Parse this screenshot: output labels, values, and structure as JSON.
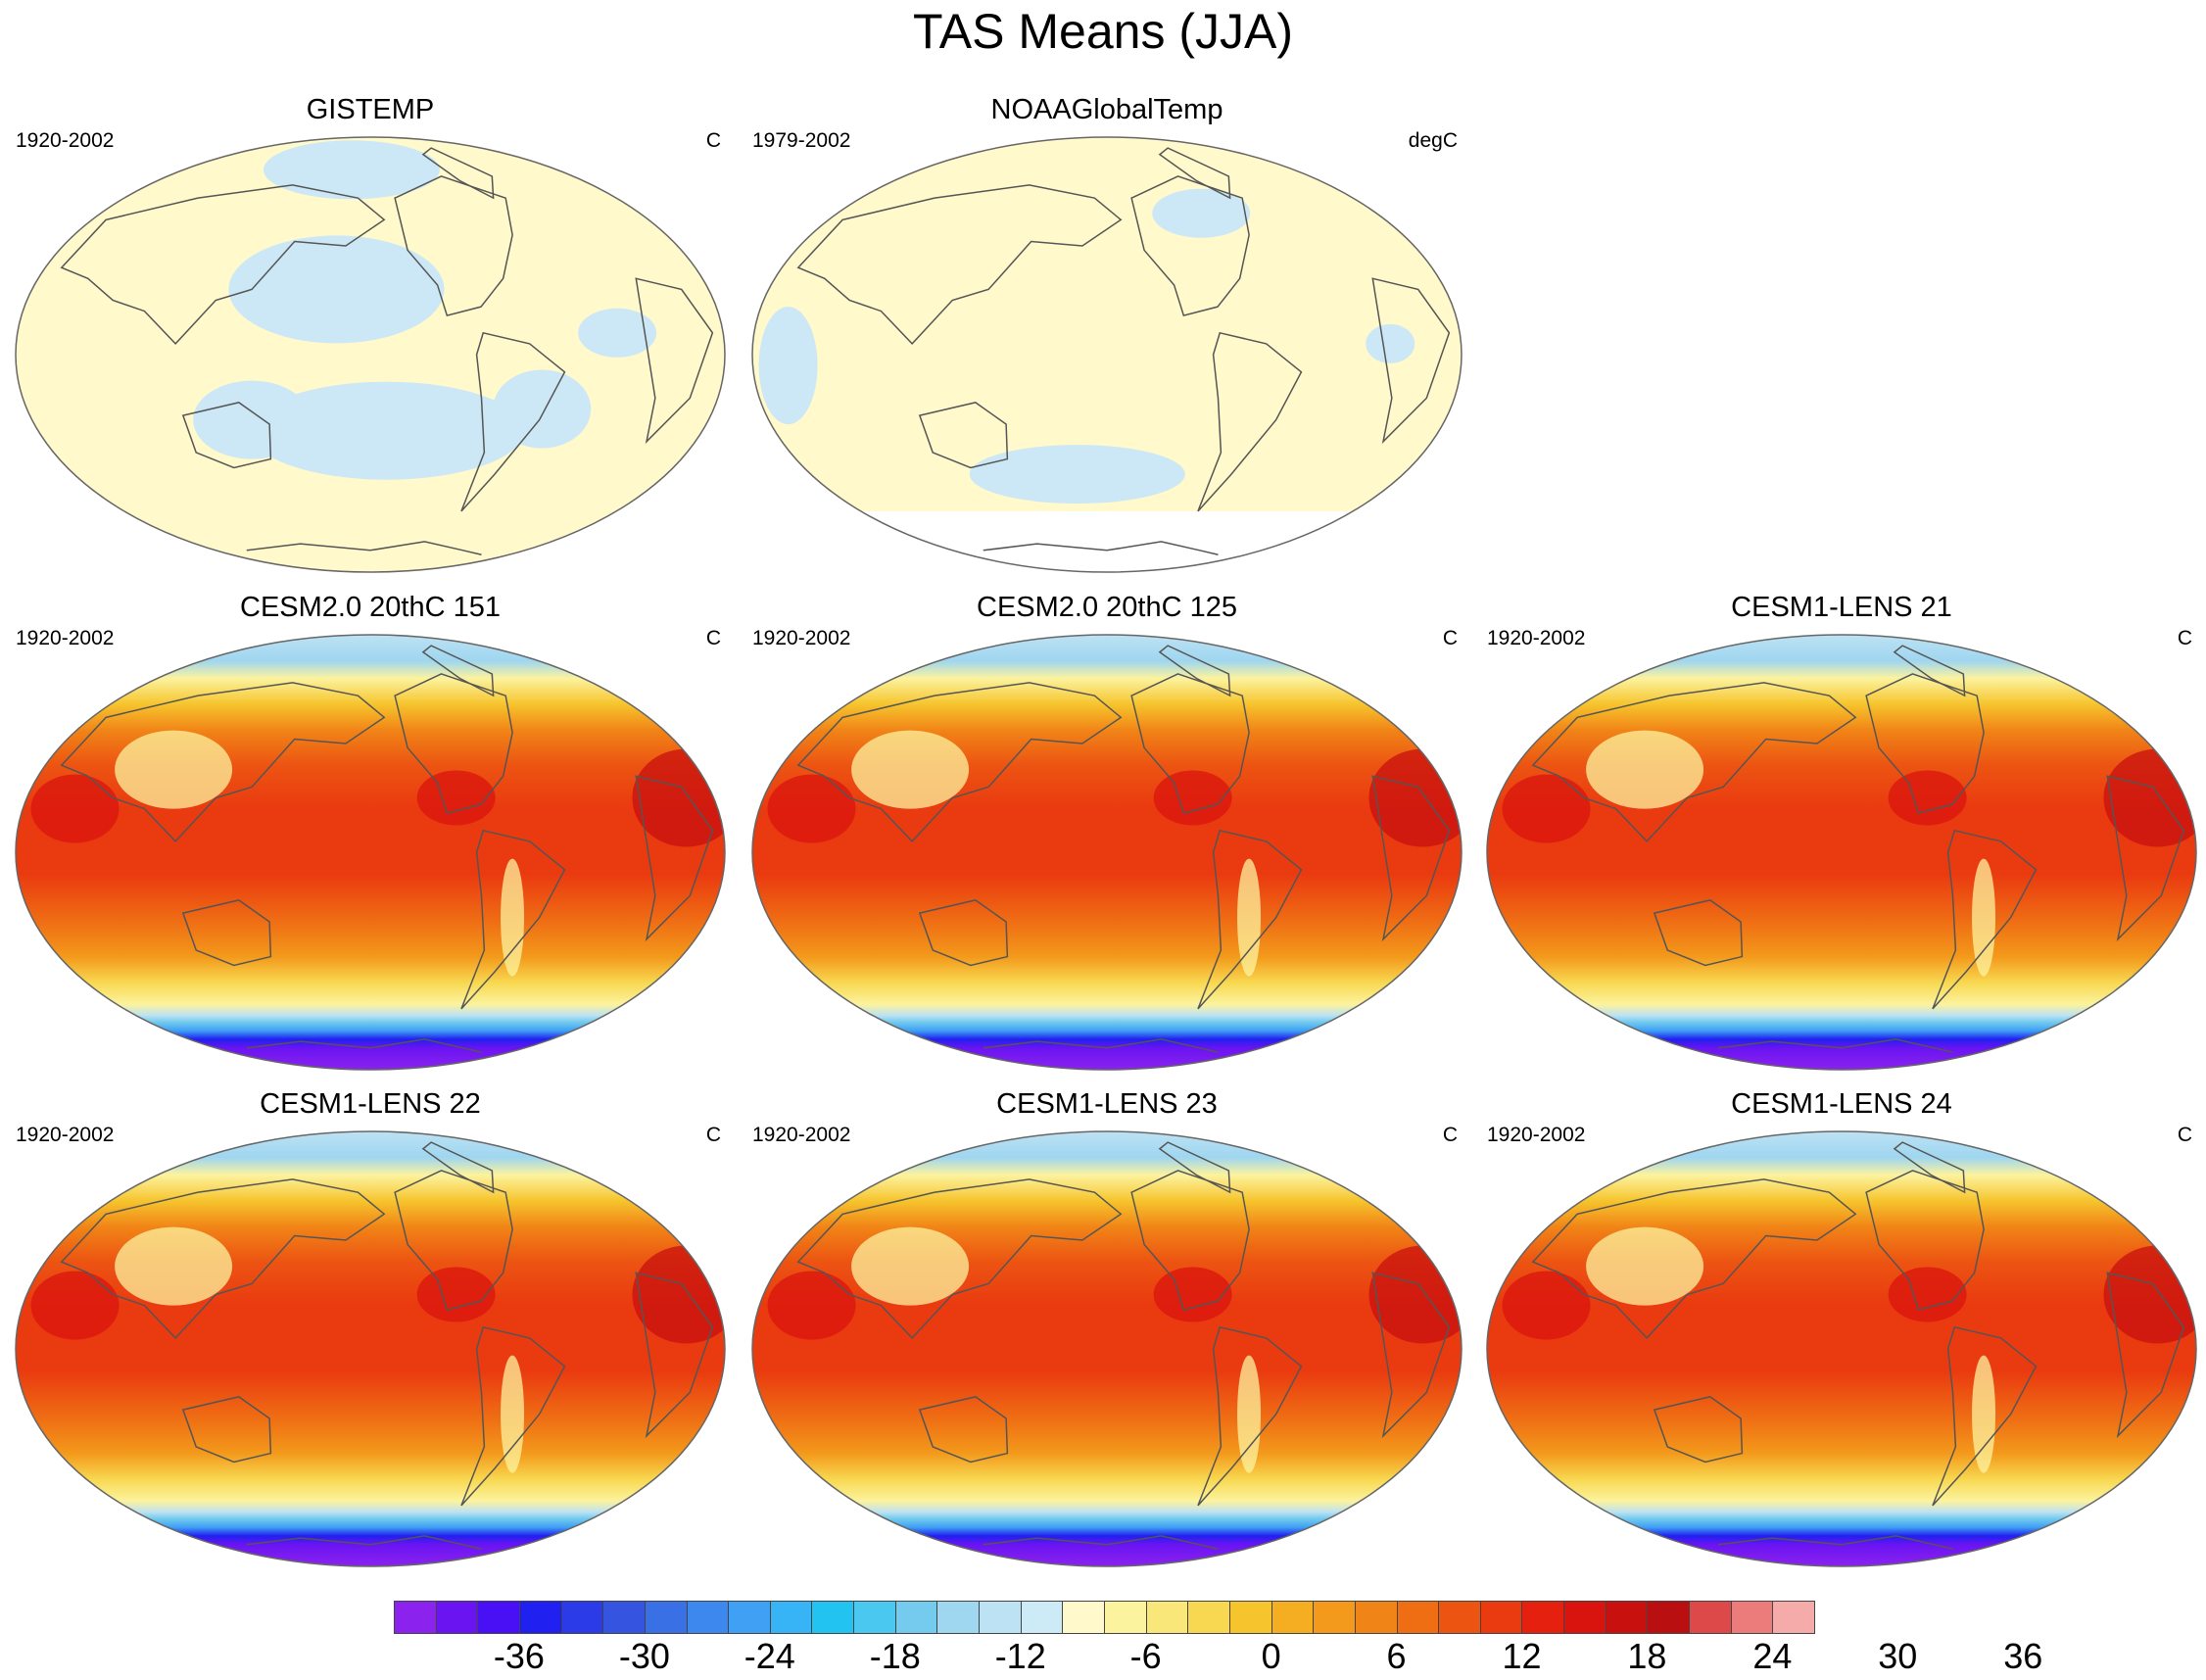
{
  "title": "TAS Means (JJA)",
  "panels": [
    {
      "title": "GISTEMP",
      "years": "1920-2002",
      "units": "C",
      "field": "obs"
    },
    {
      "title": "NOAAGlobalTemp",
      "years": "1979-2002",
      "units": "degC",
      "field": "obs2"
    },
    {
      "title": "CESM2.0 20thC 151",
      "years": "1920-2002",
      "units": "C",
      "field": "model"
    },
    {
      "title": "CESM2.0 20thC 125",
      "years": "1920-2002",
      "units": "C",
      "field": "model"
    },
    {
      "title": "CESM1-LENS 21",
      "years": "1920-2002",
      "units": "C",
      "field": "model"
    },
    {
      "title": "CESM1-LENS 22",
      "years": "1920-2002",
      "units": "C",
      "field": "model"
    },
    {
      "title": "CESM1-LENS 23",
      "years": "1920-2002",
      "units": "C",
      "field": "model"
    },
    {
      "title": "CESM1-LENS 24",
      "years": "1920-2002",
      "units": "C",
      "field": "model"
    }
  ],
  "colorbar": {
    "labels": [
      "-36",
      "-30",
      "-24",
      "-18",
      "-12",
      "-6",
      "0",
      "6",
      "12",
      "18",
      "24",
      "30",
      "36"
    ],
    "colors": [
      "#8b22ee",
      "#6a14f2",
      "#4a10f5",
      "#2020f0",
      "#2b3be8",
      "#3555e0",
      "#3a70e6",
      "#3d88ef",
      "#3fa0f4",
      "#36b4f5",
      "#22c3f0",
      "#4ac8f0",
      "#74cbee",
      "#9fd6f0",
      "#bde2f3",
      "#ccebf6",
      "#fff9cc",
      "#fcf39f",
      "#fae77a",
      "#f8d851",
      "#f6c42d",
      "#f5ae22",
      "#f3991b",
      "#f18417",
      "#ef6e14",
      "#ec5412",
      "#ea3a10",
      "#e6200e",
      "#d9140e",
      "#c8100f",
      "#b90f10",
      "#dd4848",
      "#ec7c7c",
      "#f6abab"
    ]
  }
}
